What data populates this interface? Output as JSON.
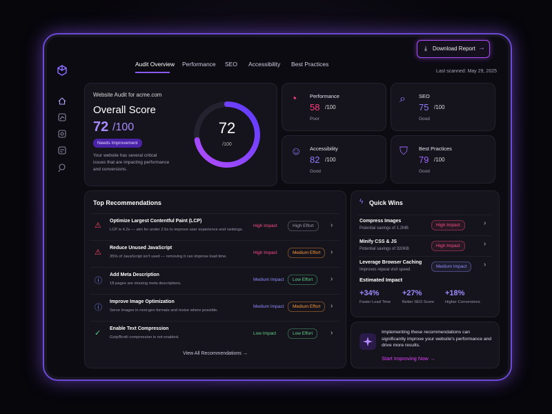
{
  "nav": {
    "tabs": [
      "Audit Overview",
      "Performance",
      "SEO",
      "Accessibility",
      "Best Practices"
    ]
  },
  "download_button": "Download Report",
  "last_scanned": "Last scanned: May 29, 2025",
  "overall": {
    "site_label": "Website Audit for acme.com",
    "title": "Overall Score",
    "score": 72,
    "out_of": {
      "value": 100,
      "label": "/100"
    },
    "status": "Needs Improvement",
    "description": "Your website has several critical issues that are impacting performance and conversions."
  },
  "scores": [
    {
      "name": "Performance",
      "value": 58,
      "out_of": "/100",
      "rating": "Poor",
      "color": "#ff3d7f"
    },
    {
      "name": "SEO",
      "value": 75,
      "out_of": "/100",
      "rating": "Good",
      "color": "#8f7dff"
    },
    {
      "name": "Accessibility",
      "value": 82,
      "out_of": "/100",
      "rating": "Good",
      "color": "#8f7dff"
    },
    {
      "name": "Best Practices",
      "value": 79,
      "out_of": "/100",
      "rating": "Good",
      "color": "#a066ff"
    }
  ],
  "recommendations": {
    "title": "Top Recommendations",
    "link": "View All Recommendations",
    "items": [
      {
        "icon": "warning",
        "icon_color": "#ff4766",
        "title": "Optimize Largest Contentful Paint (LCP)",
        "description": "LCP is 4.2s — aim for under 2.5s to improve user experience and rankings.",
        "impact": "High Impact",
        "impact_color": "#ff4d88",
        "effort": "High Effort",
        "effort_color": "#9a9aa8"
      },
      {
        "icon": "warning",
        "icon_color": "#ff4766",
        "title": "Reduce Unused JavaScript",
        "description": "35% of JavaScript isn't used — removing it can improve load time.",
        "impact": "High Impact",
        "impact_color": "#ff4d88",
        "effort": "Medium Effort",
        "effort_color": "#ff9a3c"
      },
      {
        "icon": "info",
        "icon_color": "#7f8cff",
        "title": "Add Meta Description",
        "description": "18 pages are missing meta descriptions.",
        "impact": "Medium Impact",
        "impact_color": "#8f8cff",
        "effort": "Low Effort",
        "effort_color": "#5fd38a"
      },
      {
        "icon": "info",
        "icon_color": "#7f8cff",
        "title": "Improve Image Optimization",
        "description": "Serve images in next-gen formats and resize where possible.",
        "impact": "Medium Impact",
        "impact_color": "#8f8cff",
        "effort": "Medium Effort",
        "effort_color": "#ff9a3c"
      },
      {
        "icon": "check",
        "icon_color": "#5fd38a",
        "title": "Enable Text Compression",
        "description": "Gzip/Brotli compression is not enabled.",
        "impact": "Low Impact",
        "impact_color": "#5fd38a",
        "effort": "Low Effort",
        "effort_color": "#5fd38a"
      }
    ]
  },
  "quick_wins": {
    "title": "Quick Wins",
    "items": [
      {
        "title": "Compress Images",
        "detail": "Potential savings of 1.2MB",
        "badge": "High Impact",
        "badge_color": "#ff4d88"
      },
      {
        "title": "Minify CSS & JS",
        "detail": "Potential savings of 320KB",
        "badge": "High Impact",
        "badge_color": "#ff4d88"
      },
      {
        "title": "Leverage Browser Caching",
        "detail": "Improves repeat visit speed",
        "badge": "Medium Impact",
        "badge_color": "#8f8cff"
      }
    ]
  },
  "estimated_impact": {
    "title": "Estimated Impact",
    "stats": [
      {
        "value": "+34%",
        "label": "Faster Load Time"
      },
      {
        "value": "+27%",
        "label": "Better SEO Score"
      },
      {
        "value": "+18%",
        "label": "Higher Conversions"
      }
    ]
  },
  "cta": {
    "text": "Implementing these recommendations can significantly improve your website's performance and drive more results.",
    "link": "Start Improving Now"
  }
}
